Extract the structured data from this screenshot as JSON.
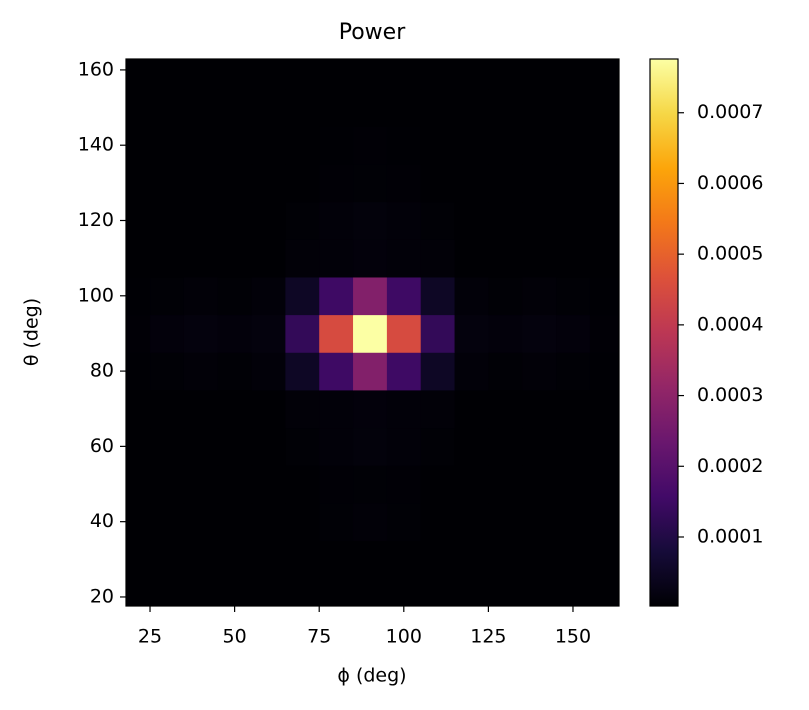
{
  "chart_data": {
    "type": "heatmap",
    "title": "Power",
    "x_label": "ϕ (deg)",
    "y_label": "θ (deg)",
    "x": [
      20,
      30,
      40,
      50,
      60,
      70,
      80,
      90,
      100,
      110,
      120,
      130,
      140,
      150,
      160
    ],
    "y": [
      20,
      30,
      40,
      50,
      60,
      70,
      80,
      90,
      100,
      110,
      120,
      130,
      140,
      150,
      160
    ],
    "values": [
      [
        3e-06,
        3e-06,
        3e-06,
        3e-06,
        3e-06,
        3e-06,
        3e-06,
        3e-06,
        3e-06,
        3e-06,
        3e-06,
        3e-06,
        3e-06,
        3e-06,
        3e-06
      ],
      [
        3e-06,
        3e-06,
        3e-06,
        3e-06,
        3e-06,
        3e-06,
        3e-06,
        3e-06,
        3e-06,
        3e-06,
        3e-06,
        3e-06,
        3e-06,
        3e-06,
        3e-06
      ],
      [
        3e-06,
        3e-06,
        3e-06,
        3e-06,
        3e-06,
        3e-06,
        6e-06,
        8e-06,
        6e-06,
        3e-06,
        3e-06,
        3e-06,
        3e-06,
        3e-06,
        3e-06
      ],
      [
        3e-06,
        3e-06,
        3e-06,
        3e-06,
        3e-06,
        3e-06,
        5e-06,
        6e-06,
        5e-06,
        3e-06,
        3e-06,
        3e-06,
        3e-06,
        3e-06,
        3e-06
      ],
      [
        3e-06,
        3e-06,
        3e-06,
        3e-06,
        3e-06,
        6e-06,
        1e-05,
        1.3e-05,
        1e-05,
        6e-06,
        3e-06,
        3e-06,
        3e-06,
        3e-06,
        3e-06
      ],
      [
        3e-06,
        3e-06,
        3e-06,
        3e-06,
        3e-06,
        8e-06,
        1e-05,
        1.2e-05,
        1e-05,
        8e-06,
        3e-06,
        3e-06,
        3e-06,
        3e-06,
        3e-06
      ],
      [
        4e-06,
        6e-06,
        8e-06,
        6e-06,
        1e-05,
        5e-05,
        0.00015,
        0.00028,
        0.00015,
        5e-05,
        1e-05,
        6e-06,
        8e-06,
        6e-06,
        4e-06
      ],
      [
        5e-06,
        1.2e-05,
        1.6e-05,
        1.2e-05,
        1.5e-05,
        0.00013,
        0.00045,
        0.000776,
        0.00045,
        0.00013,
        1.5e-05,
        1.2e-05,
        1.6e-05,
        1.2e-05,
        5e-06
      ],
      [
        4e-06,
        6e-06,
        8e-06,
        6e-06,
        1e-05,
        5e-05,
        0.00015,
        0.00028,
        0.00015,
        5e-05,
        1e-05,
        6e-06,
        8e-06,
        6e-06,
        4e-06
      ],
      [
        3e-06,
        3e-06,
        3e-06,
        3e-06,
        3e-06,
        8e-06,
        1e-05,
        1.2e-05,
        1e-05,
        8e-06,
        3e-06,
        3e-06,
        3e-06,
        3e-06,
        3e-06
      ],
      [
        3e-06,
        3e-06,
        3e-06,
        3e-06,
        3e-06,
        6e-06,
        1e-05,
        1.3e-05,
        1e-05,
        6e-06,
        3e-06,
        3e-06,
        3e-06,
        3e-06,
        3e-06
      ],
      [
        3e-06,
        3e-06,
        3e-06,
        3e-06,
        3e-06,
        3e-06,
        5e-06,
        6e-06,
        5e-06,
        3e-06,
        3e-06,
        3e-06,
        3e-06,
        3e-06,
        3e-06
      ],
      [
        3e-06,
        3e-06,
        3e-06,
        3e-06,
        3e-06,
        3e-06,
        4e-06,
        5e-06,
        4e-06,
        3e-06,
        3e-06,
        3e-06,
        3e-06,
        3e-06,
        3e-06
      ],
      [
        3e-06,
        3e-06,
        3e-06,
        3e-06,
        3e-06,
        3e-06,
        3e-06,
        3e-06,
        3e-06,
        3e-06,
        3e-06,
        3e-06,
        3e-06,
        3e-06,
        3e-06
      ],
      [
        3e-06,
        3e-06,
        3e-06,
        3e-06,
        3e-06,
        3e-06,
        3e-06,
        3e-06,
        3e-06,
        3e-06,
        3e-06,
        3e-06,
        3e-06,
        3e-06,
        3e-06
      ]
    ],
    "xlim": [
      17.9,
      163.6
    ],
    "ylim": [
      17.6,
      162.9
    ],
    "xticks": [
      25,
      50,
      75,
      100,
      125,
      150
    ],
    "yticks": [
      20,
      40,
      60,
      80,
      100,
      120,
      140,
      160
    ],
    "clim": [
      2.4e-06,
      0.000776
    ],
    "cticks": [
      0.0001,
      0.0002,
      0.0003,
      0.0004,
      0.0005,
      0.0006,
      0.0007
    ],
    "colorscale": [
      "#000004",
      "#160b39",
      "#420a68",
      "#6a176e",
      "#932667",
      "#bc3754",
      "#dd513a",
      "#f37819",
      "#fca50a",
      "#f6d746",
      "#fcffa4"
    ]
  }
}
